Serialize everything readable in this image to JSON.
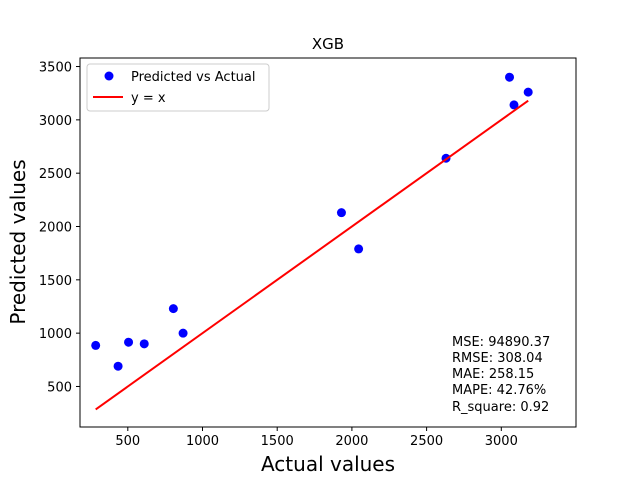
{
  "chart_data": {
    "type": "scatter",
    "title": "XGB",
    "xlabel": "Actual values",
    "ylabel": "Predicted values",
    "xlim": [
      180,
      3500
    ],
    "ylim": [
      120,
      3580
    ],
    "xticks": [
      500,
      1000,
      1500,
      2000,
      2500,
      3000
    ],
    "yticks": [
      500,
      1000,
      1500,
      2000,
      2500,
      3000,
      3500
    ],
    "grid": false,
    "legend": {
      "placement": "top-left"
    },
    "series": [
      {
        "name": "Predicted vs Actual",
        "kind": "scatter",
        "color": "#0000ff",
        "points": [
          [
            285,
            885
          ],
          [
            435,
            690
          ],
          [
            505,
            915
          ],
          [
            610,
            900
          ],
          [
            805,
            1230
          ],
          [
            870,
            1000
          ],
          [
            1930,
            2130
          ],
          [
            2045,
            1790
          ],
          [
            2630,
            2640
          ],
          [
            3055,
            3400
          ],
          [
            3085,
            3140
          ],
          [
            3180,
            3260
          ]
        ]
      },
      {
        "name": "y = x",
        "kind": "line",
        "color": "#ff0000",
        "points": [
          [
            285,
            285
          ],
          [
            3180,
            3180
          ]
        ]
      }
    ],
    "annotations": [
      "MSE: 94890.37",
      "RMSE: 308.04",
      "MAE: 258.15",
      "MAPE: 42.76%",
      "R_square: 0.92"
    ]
  }
}
